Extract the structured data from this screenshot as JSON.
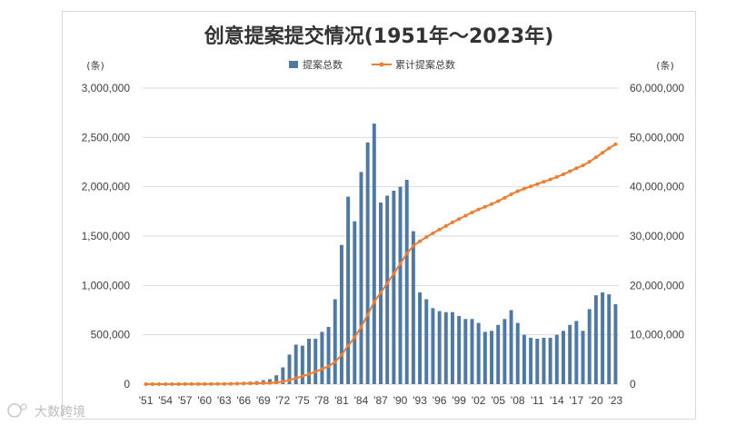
{
  "watermark": "大数跨境",
  "chart_data": {
    "type": "bar+line",
    "title": "创意提案提交情况(1951年～2023年)",
    "left_axis_unit": "(条)",
    "right_axis_unit": "(条)",
    "legend": [
      "提案总数",
      "累计提案总数"
    ],
    "colors": {
      "bar": "#4e79a7",
      "line": "#ed7d31",
      "grid": "#d9d9d9"
    },
    "left_ylim": [
      0,
      3000000
    ],
    "right_ylim": [
      0,
      60000000
    ],
    "left_ticks": [
      "0",
      "500,000",
      "1,000,000",
      "1,500,000",
      "2,000,000",
      "2,500,000",
      "3,000,000"
    ],
    "right_ticks": [
      "0",
      "10,000,000",
      "20,000,000",
      "30,000,000",
      "40,000,000",
      "50,000,000",
      "60,000,000"
    ],
    "x_tick_labels": [
      "'51",
      "'54",
      "'57",
      "'60",
      "'63",
      "'66",
      "'69",
      "'72",
      "'75",
      "'78",
      "'81",
      "'84",
      "'87",
      "'90",
      "'93",
      "'96",
      "'99",
      "'02",
      "'05",
      "'08",
      "'11",
      "'14",
      "'17",
      "'20",
      "'23"
    ],
    "years": [
      1951,
      1952,
      1953,
      1954,
      1955,
      1956,
      1957,
      1958,
      1959,
      1960,
      1961,
      1962,
      1963,
      1964,
      1965,
      1966,
      1967,
      1968,
      1969,
      1970,
      1971,
      1972,
      1973,
      1974,
      1975,
      1976,
      1977,
      1978,
      1979,
      1980,
      1981,
      1982,
      1983,
      1984,
      1985,
      1986,
      1987,
      1988,
      1989,
      1990,
      1991,
      1992,
      1993,
      1994,
      1995,
      1996,
      1997,
      1998,
      1999,
      2000,
      2001,
      2002,
      2003,
      2004,
      2005,
      2006,
      2007,
      2008,
      2009,
      2010,
      2011,
      2012,
      2013,
      2014,
      2015,
      2016,
      2017,
      2018,
      2019,
      2020,
      2021,
      2022,
      2023
    ],
    "series": [
      {
        "name": "提案总数",
        "axis": "left",
        "type": "bar",
        "values": [
          789,
          1500,
          2000,
          1800,
          1700,
          2000,
          2500,
          3000,
          4000,
          6000,
          8000,
          10000,
          12000,
          15000,
          18000,
          22000,
          25000,
          30000,
          40000,
          50000,
          90000,
          170000,
          300000,
          400000,
          390000,
          460000,
          460000,
          530000,
          580000,
          860000,
          1410000,
          1900000,
          1650000,
          2150000,
          2450000,
          2640000,
          1840000,
          1910000,
          1960000,
          2000000,
          2070000,
          1550000,
          930000,
          860000,
          770000,
          740000,
          730000,
          730000,
          690000,
          660000,
          660000,
          620000,
          530000,
          540000,
          600000,
          660000,
          750000,
          620000,
          500000,
          470000,
          460000,
          470000,
          470000,
          500000,
          540000,
          600000,
          640000,
          540000,
          760000,
          900000,
          930000,
          910000,
          810000
        ]
      },
      {
        "name": "累计提案总数",
        "axis": "right",
        "type": "line",
        "values": [
          789,
          2289,
          4289,
          6089,
          7789,
          9789,
          12289,
          15289,
          19289,
          25289,
          33289,
          43289,
          55289,
          70289,
          88289,
          110289,
          135289,
          165289,
          205289,
          255289,
          345289,
          515289,
          815289,
          1215289,
          1605289,
          2065289,
          2525289,
          3055289,
          3635289,
          4495289,
          5905289,
          7805289,
          9455289,
          11605289,
          14055289,
          16695289,
          18535289,
          20445289,
          22405289,
          24405289,
          26475289,
          28025289,
          28955289,
          29815289,
          30585289,
          31325289,
          32055289,
          32785289,
          33475289,
          34135289,
          34795289,
          35415289,
          35945289,
          36485289,
          37085289,
          37745289,
          38495289,
          39115289,
          39615289,
          40085289,
          40545289,
          41015289,
          41485289,
          41985289,
          42525289,
          43125289,
          43765289,
          44305289,
          45065289,
          45965289,
          46895289,
          47805289,
          48615289
        ]
      }
    ]
  }
}
